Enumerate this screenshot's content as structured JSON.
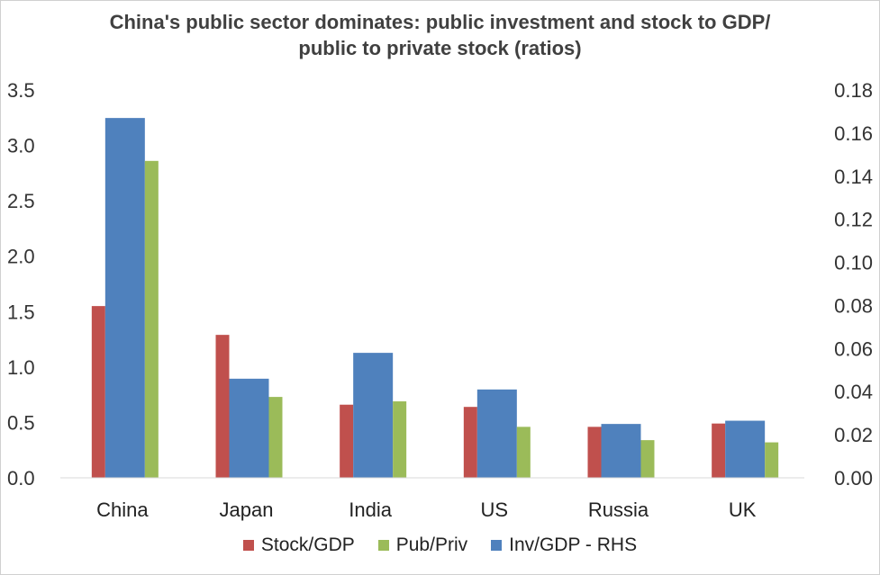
{
  "chart_data": {
    "type": "bar",
    "title_lines": [
      "China's public sector dominates: public investment and stock to GDP/",
      "public to private stock (ratios)"
    ],
    "categories": [
      "China",
      "Japan",
      "India",
      "US",
      "Russia",
      "UK"
    ],
    "series": [
      {
        "name": "Stock/GDP",
        "axis": "left",
        "color": "#C0504D",
        "values": [
          1.55,
          1.29,
          0.66,
          0.64,
          0.46,
          0.49
        ]
      },
      {
        "name": "Inv/GDP - RHS",
        "axis": "right",
        "color": "#4F81BD",
        "values": [
          0.167,
          0.046,
          0.058,
          0.041,
          0.025,
          0.0265
        ]
      },
      {
        "name": "Pub/Priv",
        "axis": "left",
        "color": "#9BBB59",
        "values": [
          2.86,
          0.73,
          0.69,
          0.46,
          0.34,
          0.32
        ]
      }
    ],
    "legend_order": [
      "Stock/GDP",
      "Pub/Priv",
      "Inv/GDP - RHS"
    ],
    "left_axis": {
      "min": 0,
      "max": 3.5,
      "ticks": [
        "0.0",
        "0.5",
        "1.0",
        "1.5",
        "2.0",
        "2.5",
        "3.0",
        "3.5"
      ]
    },
    "right_axis": {
      "min": 0,
      "max": 0.18,
      "ticks": [
        "0.00",
        "0.02",
        "0.04",
        "0.06",
        "0.08",
        "0.10",
        "0.12",
        "0.14",
        "0.16",
        "0.18"
      ]
    },
    "grid": false,
    "legend_position": "bottom"
  }
}
